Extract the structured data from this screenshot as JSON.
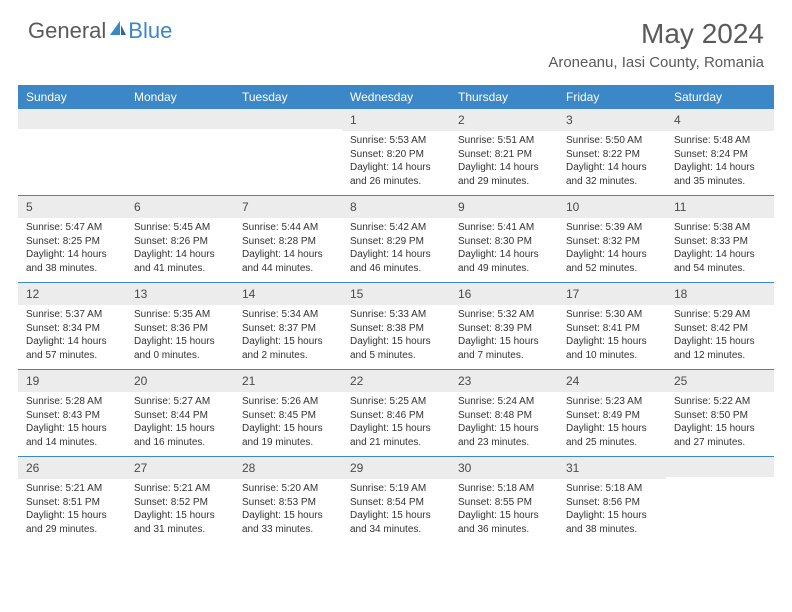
{
  "logo": {
    "text1": "General",
    "text2": "Blue"
  },
  "title": "May 2024",
  "location": "Aroneanu, Iasi County, Romania",
  "header_bg": "#3b87c8",
  "daynum_bg": "#ececec",
  "text_color": "#333333",
  "font_size_body": 10,
  "font_size_daynum": 12,
  "font_size_title": 28,
  "daynames": [
    "Sunday",
    "Monday",
    "Tuesday",
    "Wednesday",
    "Thursday",
    "Friday",
    "Saturday"
  ],
  "weeks": [
    [
      {
        "day": "",
        "sunrise": "",
        "sunset": "",
        "daylight1": "",
        "daylight2": ""
      },
      {
        "day": "",
        "sunrise": "",
        "sunset": "",
        "daylight1": "",
        "daylight2": ""
      },
      {
        "day": "",
        "sunrise": "",
        "sunset": "",
        "daylight1": "",
        "daylight2": ""
      },
      {
        "day": "1",
        "sunrise": "Sunrise: 5:53 AM",
        "sunset": "Sunset: 8:20 PM",
        "daylight1": "Daylight: 14 hours",
        "daylight2": "and 26 minutes."
      },
      {
        "day": "2",
        "sunrise": "Sunrise: 5:51 AM",
        "sunset": "Sunset: 8:21 PM",
        "daylight1": "Daylight: 14 hours",
        "daylight2": "and 29 minutes."
      },
      {
        "day": "3",
        "sunrise": "Sunrise: 5:50 AM",
        "sunset": "Sunset: 8:22 PM",
        "daylight1": "Daylight: 14 hours",
        "daylight2": "and 32 minutes."
      },
      {
        "day": "4",
        "sunrise": "Sunrise: 5:48 AM",
        "sunset": "Sunset: 8:24 PM",
        "daylight1": "Daylight: 14 hours",
        "daylight2": "and 35 minutes."
      }
    ],
    [
      {
        "day": "5",
        "sunrise": "Sunrise: 5:47 AM",
        "sunset": "Sunset: 8:25 PM",
        "daylight1": "Daylight: 14 hours",
        "daylight2": "and 38 minutes."
      },
      {
        "day": "6",
        "sunrise": "Sunrise: 5:45 AM",
        "sunset": "Sunset: 8:26 PM",
        "daylight1": "Daylight: 14 hours",
        "daylight2": "and 41 minutes."
      },
      {
        "day": "7",
        "sunrise": "Sunrise: 5:44 AM",
        "sunset": "Sunset: 8:28 PM",
        "daylight1": "Daylight: 14 hours",
        "daylight2": "and 44 minutes."
      },
      {
        "day": "8",
        "sunrise": "Sunrise: 5:42 AM",
        "sunset": "Sunset: 8:29 PM",
        "daylight1": "Daylight: 14 hours",
        "daylight2": "and 46 minutes."
      },
      {
        "day": "9",
        "sunrise": "Sunrise: 5:41 AM",
        "sunset": "Sunset: 8:30 PM",
        "daylight1": "Daylight: 14 hours",
        "daylight2": "and 49 minutes."
      },
      {
        "day": "10",
        "sunrise": "Sunrise: 5:39 AM",
        "sunset": "Sunset: 8:32 PM",
        "daylight1": "Daylight: 14 hours",
        "daylight2": "and 52 minutes."
      },
      {
        "day": "11",
        "sunrise": "Sunrise: 5:38 AM",
        "sunset": "Sunset: 8:33 PM",
        "daylight1": "Daylight: 14 hours",
        "daylight2": "and 54 minutes."
      }
    ],
    [
      {
        "day": "12",
        "sunrise": "Sunrise: 5:37 AM",
        "sunset": "Sunset: 8:34 PM",
        "daylight1": "Daylight: 14 hours",
        "daylight2": "and 57 minutes."
      },
      {
        "day": "13",
        "sunrise": "Sunrise: 5:35 AM",
        "sunset": "Sunset: 8:36 PM",
        "daylight1": "Daylight: 15 hours",
        "daylight2": "and 0 minutes."
      },
      {
        "day": "14",
        "sunrise": "Sunrise: 5:34 AM",
        "sunset": "Sunset: 8:37 PM",
        "daylight1": "Daylight: 15 hours",
        "daylight2": "and 2 minutes."
      },
      {
        "day": "15",
        "sunrise": "Sunrise: 5:33 AM",
        "sunset": "Sunset: 8:38 PM",
        "daylight1": "Daylight: 15 hours",
        "daylight2": "and 5 minutes."
      },
      {
        "day": "16",
        "sunrise": "Sunrise: 5:32 AM",
        "sunset": "Sunset: 8:39 PM",
        "daylight1": "Daylight: 15 hours",
        "daylight2": "and 7 minutes."
      },
      {
        "day": "17",
        "sunrise": "Sunrise: 5:30 AM",
        "sunset": "Sunset: 8:41 PM",
        "daylight1": "Daylight: 15 hours",
        "daylight2": "and 10 minutes."
      },
      {
        "day": "18",
        "sunrise": "Sunrise: 5:29 AM",
        "sunset": "Sunset: 8:42 PM",
        "daylight1": "Daylight: 15 hours",
        "daylight2": "and 12 minutes."
      }
    ],
    [
      {
        "day": "19",
        "sunrise": "Sunrise: 5:28 AM",
        "sunset": "Sunset: 8:43 PM",
        "daylight1": "Daylight: 15 hours",
        "daylight2": "and 14 minutes."
      },
      {
        "day": "20",
        "sunrise": "Sunrise: 5:27 AM",
        "sunset": "Sunset: 8:44 PM",
        "daylight1": "Daylight: 15 hours",
        "daylight2": "and 16 minutes."
      },
      {
        "day": "21",
        "sunrise": "Sunrise: 5:26 AM",
        "sunset": "Sunset: 8:45 PM",
        "daylight1": "Daylight: 15 hours",
        "daylight2": "and 19 minutes."
      },
      {
        "day": "22",
        "sunrise": "Sunrise: 5:25 AM",
        "sunset": "Sunset: 8:46 PM",
        "daylight1": "Daylight: 15 hours",
        "daylight2": "and 21 minutes."
      },
      {
        "day": "23",
        "sunrise": "Sunrise: 5:24 AM",
        "sunset": "Sunset: 8:48 PM",
        "daylight1": "Daylight: 15 hours",
        "daylight2": "and 23 minutes."
      },
      {
        "day": "24",
        "sunrise": "Sunrise: 5:23 AM",
        "sunset": "Sunset: 8:49 PM",
        "daylight1": "Daylight: 15 hours",
        "daylight2": "and 25 minutes."
      },
      {
        "day": "25",
        "sunrise": "Sunrise: 5:22 AM",
        "sunset": "Sunset: 8:50 PM",
        "daylight1": "Daylight: 15 hours",
        "daylight2": "and 27 minutes."
      }
    ],
    [
      {
        "day": "26",
        "sunrise": "Sunrise: 5:21 AM",
        "sunset": "Sunset: 8:51 PM",
        "daylight1": "Daylight: 15 hours",
        "daylight2": "and 29 minutes."
      },
      {
        "day": "27",
        "sunrise": "Sunrise: 5:21 AM",
        "sunset": "Sunset: 8:52 PM",
        "daylight1": "Daylight: 15 hours",
        "daylight2": "and 31 minutes."
      },
      {
        "day": "28",
        "sunrise": "Sunrise: 5:20 AM",
        "sunset": "Sunset: 8:53 PM",
        "daylight1": "Daylight: 15 hours",
        "daylight2": "and 33 minutes."
      },
      {
        "day": "29",
        "sunrise": "Sunrise: 5:19 AM",
        "sunset": "Sunset: 8:54 PM",
        "daylight1": "Daylight: 15 hours",
        "daylight2": "and 34 minutes."
      },
      {
        "day": "30",
        "sunrise": "Sunrise: 5:18 AM",
        "sunset": "Sunset: 8:55 PM",
        "daylight1": "Daylight: 15 hours",
        "daylight2": "and 36 minutes."
      },
      {
        "day": "31",
        "sunrise": "Sunrise: 5:18 AM",
        "sunset": "Sunset: 8:56 PM",
        "daylight1": "Daylight: 15 hours",
        "daylight2": "and 38 minutes."
      },
      {
        "day": "",
        "sunrise": "",
        "sunset": "",
        "daylight1": "",
        "daylight2": ""
      }
    ]
  ]
}
